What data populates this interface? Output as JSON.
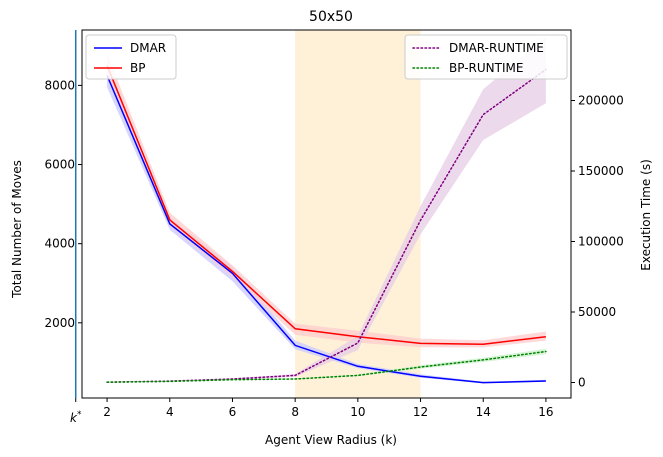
{
  "chart_data": {
    "type": "line",
    "title": "50x50",
    "xlabel": "Agent View Radius (k)",
    "ylabel_left": "Total Number of Moves",
    "ylabel_right": "Execution Time (s)",
    "xlim": [
      1.2,
      16.8
    ],
    "ylim_left": [
      100,
      9400
    ],
    "ylim_right": [
      -11000,
      250000
    ],
    "x_ticks": [
      2,
      4,
      6,
      8,
      10,
      12,
      14,
      16
    ],
    "x_tick_labels": [
      "2",
      "4",
      "6",
      "8",
      "10",
      "12",
      "14",
      "16"
    ],
    "kstar": {
      "x": 1.0,
      "label": "k*"
    },
    "y_left_ticks": [
      2000,
      4000,
      6000,
      8000
    ],
    "y_left_tick_labels": [
      "2000",
      "4000",
      "6000",
      "8000"
    ],
    "y_right_ticks": [
      0,
      50000,
      100000,
      150000,
      200000
    ],
    "y_right_tick_labels": [
      "0",
      "50000",
      "100000",
      "150000",
      "200000"
    ],
    "shaded_region": {
      "x_start": 8,
      "x_end": 12,
      "color": "#fdebc8"
    },
    "series": [
      {
        "name": "DMAR",
        "axis": "left",
        "color": "#0000ff",
        "style": "solid",
        "x": [
          2,
          4,
          6,
          8,
          10,
          12,
          14,
          16
        ],
        "values": [
          8250,
          4500,
          3250,
          1430,
          900,
          650,
          490,
          530
        ],
        "lower": [
          7950,
          4350,
          3050,
          1330,
          850,
          610,
          470,
          510
        ],
        "upper": [
          8500,
          4650,
          3420,
          1550,
          960,
          700,
          510,
          560
        ],
        "band_color": "#c8c8ff"
      },
      {
        "name": "BP",
        "axis": "left",
        "color": "#ff0000",
        "style": "solid",
        "x": [
          2,
          4,
          6,
          8,
          10,
          12,
          14,
          16
        ],
        "values": [
          8500,
          4600,
          3300,
          1850,
          1650,
          1480,
          1460,
          1650
        ],
        "lower": [
          8250,
          4450,
          3150,
          1700,
          1500,
          1380,
          1380,
          1550
        ],
        "upper": [
          8800,
          4780,
          3450,
          1980,
          1800,
          1600,
          1560,
          1780
        ],
        "band_color": "#ffcccc"
      },
      {
        "name": "DMAR-RUNTIME",
        "axis": "right",
        "color": "#800080",
        "style": "dotted",
        "x": [
          2,
          4,
          6,
          8,
          10,
          12,
          14,
          16
        ],
        "values": [
          200,
          1000,
          2500,
          5000,
          28000,
          115000,
          190000,
          222000
        ],
        "lower": [
          100,
          800,
          2000,
          4000,
          23000,
          105000,
          172000,
          198000
        ],
        "upper": [
          300,
          1200,
          3000,
          6000,
          33000,
          125000,
          208000,
          245000
        ],
        "band_color": "#e6cce6"
      },
      {
        "name": "BP-RUNTIME",
        "axis": "right",
        "color": "#008000",
        "style": "dotted",
        "x": [
          2,
          4,
          6,
          8,
          10,
          12,
          14,
          16
        ],
        "values": [
          200,
          800,
          2000,
          2500,
          5000,
          11000,
          16000,
          22000
        ],
        "lower": [
          100,
          600,
          1600,
          2100,
          4300,
          9800,
          14500,
          20000
        ],
        "upper": [
          300,
          1000,
          2400,
          2900,
          5700,
          12200,
          17500,
          24000
        ],
        "band_color": "#c8f0c8"
      }
    ],
    "legend_left": {
      "placement": "top-left",
      "entries": [
        "DMAR",
        "BP"
      ]
    },
    "legend_right": {
      "placement": "top-right",
      "entries": [
        "DMAR-RUNTIME",
        "BP-RUNTIME"
      ]
    }
  }
}
